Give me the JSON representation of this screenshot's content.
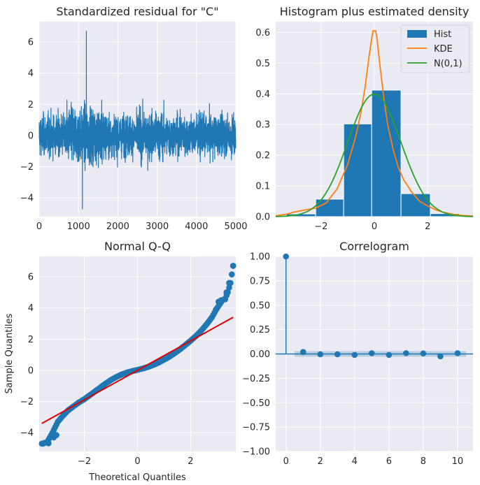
{
  "colors": {
    "blue": "#1f77b4",
    "orange": "#ff7f0e",
    "green": "#2ca02c",
    "red": "#e00000",
    "panel_background": "#eaeaf2",
    "grid": "#ffffff"
  },
  "chart_data": [
    {
      "type": "line",
      "title": "Standardized residual for \"C\"",
      "xlim": [
        0,
        5000
      ],
      "ylim": [
        -5.2,
        7.3
      ],
      "xticks": [
        0,
        1000,
        2000,
        3000,
        4000,
        5000
      ],
      "xtick_labels": [
        "0",
        "1000",
        "2000",
        "3000",
        "4000",
        "5000"
      ],
      "yticks": [
        -4,
        -2,
        0,
        2,
        4,
        6
      ],
      "ytick_labels": [
        "−4",
        "−2",
        "0",
        "2",
        "4",
        "6"
      ],
      "n_points": 5000,
      "max": 6.7,
      "min": -4.7,
      "grid": true
    },
    {
      "type": "bar",
      "title": "Histogram plus estimated density",
      "xlim": [
        -3.7,
        3.7
      ],
      "ylim": [
        0,
        0.635
      ],
      "xticks": [
        -2,
        0,
        2
      ],
      "xtick_labels": [
        "−2",
        "0",
        "2"
      ],
      "yticks": [
        0,
        0.1,
        0.2,
        0.3,
        0.4,
        0.5,
        0.6
      ],
      "ytick_labels": [
        "0.0",
        "0.1",
        "0.2",
        "0.3",
        "0.4",
        "0.5",
        "0.6"
      ],
      "bins": [
        {
          "from": -4.7,
          "to": -3.3,
          "value": 0.002
        },
        {
          "from": -3.3,
          "to": -2.2,
          "value": 0.009
        },
        {
          "from": -2.2,
          "to": -1.15,
          "value": 0.057
        },
        {
          "from": -1.15,
          "to": -0.1,
          "value": 0.302
        },
        {
          "from": -0.1,
          "to": 1.0,
          "value": 0.412
        },
        {
          "from": 1.0,
          "to": 2.1,
          "value": 0.075
        },
        {
          "from": 2.1,
          "to": 3.2,
          "value": 0.01
        },
        {
          "from": 3.2,
          "to": 4.3,
          "value": 0.003
        }
      ],
      "series": [
        {
          "name": "KDE",
          "x": [
            -3.7,
            -3.3,
            -3.0,
            -2.6,
            -2.2,
            -1.8,
            -1.4,
            -1.0,
            -0.7,
            -0.5,
            -0.35,
            -0.2,
            -0.1,
            -0.05,
            0.0,
            0.05,
            0.1,
            0.2,
            0.35,
            0.5,
            0.7,
            0.9,
            1.1,
            1.4,
            1.7,
            2.0,
            2.3,
            2.6,
            3.0,
            3.3,
            3.7
          ],
          "y": [
            0.003,
            0.008,
            0.015,
            0.022,
            0.028,
            0.045,
            0.09,
            0.17,
            0.26,
            0.34,
            0.42,
            0.52,
            0.58,
            0.605,
            0.605,
            0.605,
            0.58,
            0.5,
            0.39,
            0.3,
            0.22,
            0.16,
            0.12,
            0.08,
            0.05,
            0.035,
            0.022,
            0.014,
            0.007,
            0.004,
            0.002
          ]
        },
        {
          "name": "N(0,1)",
          "kind": "normal_pdf",
          "mean": 0,
          "sd": 1
        }
      ],
      "legend": [
        "Hist",
        "KDE",
        "N(0,1)"
      ],
      "legend_position": "top-right",
      "grid": true
    },
    {
      "type": "scatter",
      "title": "Normal Q-Q",
      "xlabel": "Theoretical Quantiles",
      "ylabel": "Sample Quantiles",
      "xlim": [
        -3.7,
        3.7
      ],
      "ylim": [
        -5.2,
        7.3
      ],
      "xticks": [
        -2,
        0,
        2
      ],
      "xtick_labels": [
        "−2",
        "0",
        "2"
      ],
      "yticks": [
        -4,
        -2,
        0,
        2,
        4,
        6
      ],
      "ytick_labels": [
        "−4",
        "−2",
        "0",
        "2",
        "4",
        "6"
      ],
      "curve": {
        "x": [
          -3.6,
          -3.4,
          -3.2,
          -3.0,
          -2.8,
          -2.6,
          -2.4,
          -2.2,
          -2.0,
          -1.8,
          -1.6,
          -1.4,
          -1.2,
          -1.0,
          -0.8,
          -0.6,
          -0.4,
          -0.2,
          0.0,
          0.2,
          0.4,
          0.6,
          0.8,
          1.0,
          1.2,
          1.4,
          1.6,
          1.8,
          2.0,
          2.2,
          2.4,
          2.6,
          2.8,
          3.0,
          3.2,
          3.3,
          3.4,
          3.5,
          3.6
        ],
        "y": [
          -4.7,
          -4.6,
          -4.0,
          -3.3,
          -2.9,
          -2.55,
          -2.3,
          -2.05,
          -1.85,
          -1.6,
          -1.35,
          -1.1,
          -0.85,
          -0.62,
          -0.43,
          -0.27,
          -0.14,
          -0.05,
          0.03,
          0.12,
          0.22,
          0.35,
          0.5,
          0.68,
          0.88,
          1.1,
          1.35,
          1.62,
          1.9,
          2.2,
          2.55,
          2.95,
          3.4,
          4.0,
          4.5,
          4.6,
          5.0,
          5.6,
          6.7
        ]
      },
      "reference_line": {
        "x": [
          -3.6,
          3.6
        ],
        "y": [
          -3.4,
          3.4
        ]
      },
      "grid": true
    },
    {
      "type": "scatter",
      "title": "Correlogram",
      "xlim": [
        -0.6,
        10.9
      ],
      "ylim": [
        -1.0,
        1.0
      ],
      "xticks": [
        0,
        2,
        4,
        6,
        8,
        10
      ],
      "xtick_labels": [
        "0",
        "2",
        "4",
        "6",
        "8",
        "10"
      ],
      "yticks": [
        -1.0,
        -0.75,
        -0.5,
        -0.25,
        0.0,
        0.25,
        0.5,
        0.75,
        1.0
      ],
      "ytick_labels": [
        "−1.00",
        "−0.75",
        "−0.50",
        "−0.25",
        "0.00",
        "0.25",
        "0.50",
        "0.75",
        "1.00"
      ],
      "lags": [
        0,
        1,
        2,
        3,
        4,
        5,
        6,
        7,
        8,
        9,
        10
      ],
      "acf": [
        1.0,
        0.02,
        -0.003,
        -0.003,
        -0.01,
        0.008,
        -0.01,
        0.008,
        0.006,
        -0.025,
        0.008
      ],
      "confidence_band": 0.028,
      "grid": true
    }
  ]
}
